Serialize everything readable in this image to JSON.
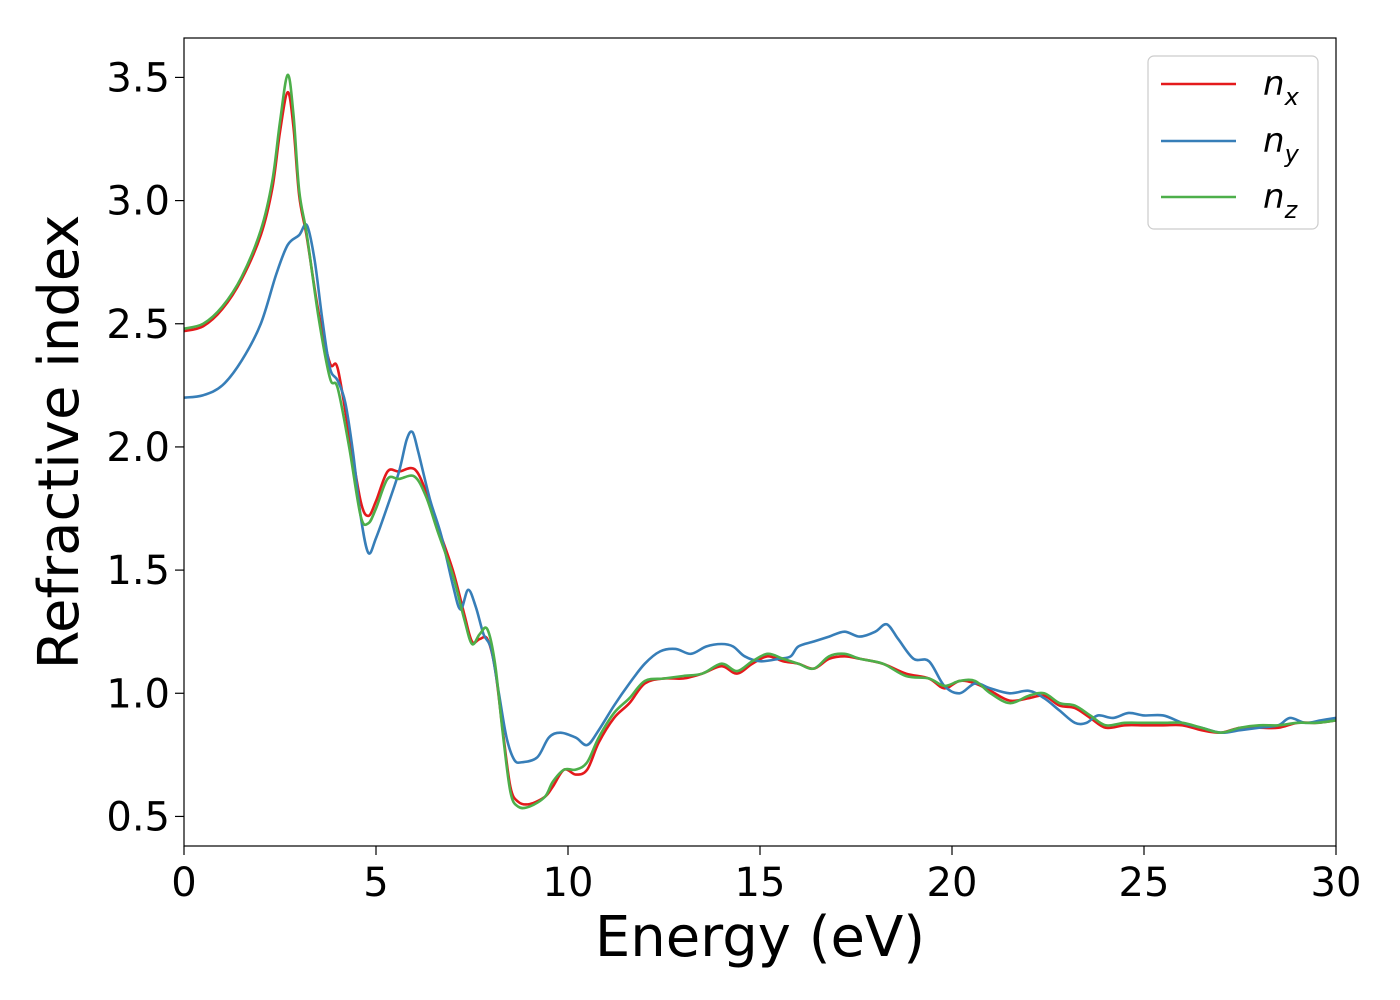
{
  "chart_data": {
    "type": "line",
    "xlabel": "Energy (eV)",
    "ylabel": "Refractive index",
    "xlim": [
      0,
      30
    ],
    "ylim": [
      0.38,
      3.66
    ],
    "xticks": [
      0,
      5,
      10,
      15,
      20,
      25,
      30
    ],
    "xtick_labels": [
      "0",
      "5",
      "10",
      "15",
      "20",
      "25",
      "30"
    ],
    "yticks": [
      0.5,
      1.0,
      1.5,
      2.0,
      2.5,
      3.0,
      3.5
    ],
    "ytick_labels": [
      "0.5",
      "1.0",
      "1.5",
      "2.0",
      "2.5",
      "3.0",
      "3.5"
    ],
    "grid": false,
    "legend_position": "top-right",
    "series": [
      {
        "name": "n_x",
        "label_main": "n",
        "label_sub": "x",
        "color": "#e41a1c",
        "points": [
          [
            0,
            2.47
          ],
          [
            0.5,
            2.49
          ],
          [
            1.0,
            2.56
          ],
          [
            1.5,
            2.68
          ],
          [
            2.0,
            2.86
          ],
          [
            2.3,
            3.05
          ],
          [
            2.5,
            3.28
          ],
          [
            2.7,
            3.44
          ],
          [
            2.85,
            3.3
          ],
          [
            3.0,
            3.02
          ],
          [
            3.2,
            2.85
          ],
          [
            3.5,
            2.55
          ],
          [
            3.8,
            2.34
          ],
          [
            4.0,
            2.32
          ],
          [
            4.3,
            2.05
          ],
          [
            4.6,
            1.78
          ],
          [
            4.8,
            1.72
          ],
          [
            5.0,
            1.78
          ],
          [
            5.3,
            1.9
          ],
          [
            5.6,
            1.9
          ],
          [
            6.0,
            1.91
          ],
          [
            6.3,
            1.82
          ],
          [
            6.6,
            1.68
          ],
          [
            7.0,
            1.5
          ],
          [
            7.3,
            1.32
          ],
          [
            7.5,
            1.21
          ],
          [
            7.7,
            1.22
          ],
          [
            7.9,
            1.22
          ],
          [
            8.1,
            1.1
          ],
          [
            8.3,
            0.85
          ],
          [
            8.5,
            0.62
          ],
          [
            8.7,
            0.56
          ],
          [
            9.0,
            0.55
          ],
          [
            9.4,
            0.58
          ],
          [
            9.6,
            0.62
          ],
          [
            9.9,
            0.69
          ],
          [
            10.2,
            0.67
          ],
          [
            10.5,
            0.69
          ],
          [
            10.8,
            0.8
          ],
          [
            11.2,
            0.9
          ],
          [
            11.6,
            0.96
          ],
          [
            12.0,
            1.04
          ],
          [
            12.5,
            1.06
          ],
          [
            13.0,
            1.06
          ],
          [
            13.5,
            1.08
          ],
          [
            14.0,
            1.11
          ],
          [
            14.4,
            1.08
          ],
          [
            14.8,
            1.12
          ],
          [
            15.2,
            1.15
          ],
          [
            15.6,
            1.13
          ],
          [
            16.0,
            1.12
          ],
          [
            16.4,
            1.1
          ],
          [
            16.8,
            1.14
          ],
          [
            17.2,
            1.15
          ],
          [
            17.6,
            1.14
          ],
          [
            18.2,
            1.12
          ],
          [
            18.8,
            1.08
          ],
          [
            19.4,
            1.06
          ],
          [
            19.8,
            1.02
          ],
          [
            20.2,
            1.05
          ],
          [
            20.6,
            1.04
          ],
          [
            21.0,
            1.01
          ],
          [
            21.5,
            0.97
          ],
          [
            22.0,
            0.98
          ],
          [
            22.4,
            0.99
          ],
          [
            22.8,
            0.95
          ],
          [
            23.2,
            0.94
          ],
          [
            23.6,
            0.9
          ],
          [
            24.0,
            0.86
          ],
          [
            24.5,
            0.87
          ],
          [
            25.0,
            0.87
          ],
          [
            25.5,
            0.87
          ],
          [
            26.0,
            0.87
          ],
          [
            26.5,
            0.85
          ],
          [
            27.0,
            0.84
          ],
          [
            27.5,
            0.86
          ],
          [
            28.0,
            0.86
          ],
          [
            28.5,
            0.86
          ],
          [
            29.0,
            0.88
          ],
          [
            29.5,
            0.88
          ],
          [
            30.0,
            0.89
          ]
        ]
      },
      {
        "name": "n_y",
        "label_main": "n",
        "label_sub": "y",
        "color": "#377eb8",
        "points": [
          [
            0,
            2.2
          ],
          [
            0.5,
            2.21
          ],
          [
            1.0,
            2.25
          ],
          [
            1.5,
            2.35
          ],
          [
            2.0,
            2.5
          ],
          [
            2.4,
            2.7
          ],
          [
            2.7,
            2.82
          ],
          [
            3.0,
            2.86
          ],
          [
            3.2,
            2.9
          ],
          [
            3.4,
            2.76
          ],
          [
            3.6,
            2.52
          ],
          [
            3.8,
            2.32
          ],
          [
            4.0,
            2.27
          ],
          [
            4.2,
            2.18
          ],
          [
            4.4,
            1.98
          ],
          [
            4.6,
            1.72
          ],
          [
            4.8,
            1.57
          ],
          [
            5.0,
            1.63
          ],
          [
            5.3,
            1.76
          ],
          [
            5.6,
            1.9
          ],
          [
            5.8,
            2.03
          ],
          [
            5.95,
            2.06
          ],
          [
            6.1,
            1.98
          ],
          [
            6.4,
            1.79
          ],
          [
            6.7,
            1.64
          ],
          [
            7.0,
            1.44
          ],
          [
            7.2,
            1.34
          ],
          [
            7.4,
            1.42
          ],
          [
            7.6,
            1.35
          ],
          [
            7.8,
            1.24
          ],
          [
            8.0,
            1.18
          ],
          [
            8.2,
            1.0
          ],
          [
            8.4,
            0.82
          ],
          [
            8.6,
            0.73
          ],
          [
            8.8,
            0.72
          ],
          [
            9.2,
            0.74
          ],
          [
            9.5,
            0.82
          ],
          [
            9.8,
            0.84
          ],
          [
            10.2,
            0.82
          ],
          [
            10.5,
            0.79
          ],
          [
            10.8,
            0.85
          ],
          [
            11.2,
            0.95
          ],
          [
            11.6,
            1.04
          ],
          [
            12.0,
            1.12
          ],
          [
            12.4,
            1.17
          ],
          [
            12.8,
            1.18
          ],
          [
            13.2,
            1.16
          ],
          [
            13.6,
            1.19
          ],
          [
            14.0,
            1.2
          ],
          [
            14.3,
            1.19
          ],
          [
            14.6,
            1.15
          ],
          [
            15.0,
            1.13
          ],
          [
            15.5,
            1.14
          ],
          [
            15.8,
            1.15
          ],
          [
            16.0,
            1.19
          ],
          [
            16.4,
            1.21
          ],
          [
            16.8,
            1.23
          ],
          [
            17.2,
            1.25
          ],
          [
            17.6,
            1.23
          ],
          [
            18.0,
            1.25
          ],
          [
            18.3,
            1.28
          ],
          [
            18.6,
            1.22
          ],
          [
            19.0,
            1.14
          ],
          [
            19.4,
            1.13
          ],
          [
            19.8,
            1.03
          ],
          [
            20.2,
            1.0
          ],
          [
            20.6,
            1.04
          ],
          [
            21.0,
            1.02
          ],
          [
            21.5,
            1.0
          ],
          [
            22.0,
            1.01
          ],
          [
            22.4,
            0.98
          ],
          [
            22.8,
            0.93
          ],
          [
            23.2,
            0.88
          ],
          [
            23.5,
            0.88
          ],
          [
            23.8,
            0.91
          ],
          [
            24.2,
            0.9
          ],
          [
            24.6,
            0.92
          ],
          [
            25.0,
            0.91
          ],
          [
            25.5,
            0.91
          ],
          [
            26.0,
            0.88
          ],
          [
            26.5,
            0.86
          ],
          [
            27.0,
            0.84
          ],
          [
            27.5,
            0.85
          ],
          [
            28.0,
            0.86
          ],
          [
            28.5,
            0.87
          ],
          [
            28.8,
            0.9
          ],
          [
            29.2,
            0.88
          ],
          [
            29.6,
            0.89
          ],
          [
            30.0,
            0.9
          ]
        ]
      },
      {
        "name": "n_z",
        "label_main": "n",
        "label_sub": "z",
        "color": "#4daf4a",
        "points": [
          [
            0,
            2.48
          ],
          [
            0.5,
            2.5
          ],
          [
            1.0,
            2.57
          ],
          [
            1.5,
            2.69
          ],
          [
            2.0,
            2.88
          ],
          [
            2.3,
            3.08
          ],
          [
            2.5,
            3.32
          ],
          [
            2.7,
            3.51
          ],
          [
            2.85,
            3.35
          ],
          [
            3.0,
            3.04
          ],
          [
            3.2,
            2.86
          ],
          [
            3.5,
            2.53
          ],
          [
            3.8,
            2.28
          ],
          [
            4.0,
            2.24
          ],
          [
            4.3,
            2.0
          ],
          [
            4.6,
            1.72
          ],
          [
            4.8,
            1.69
          ],
          [
            5.0,
            1.75
          ],
          [
            5.3,
            1.87
          ],
          [
            5.6,
            1.87
          ],
          [
            6.0,
            1.88
          ],
          [
            6.3,
            1.8
          ],
          [
            6.6,
            1.66
          ],
          [
            7.0,
            1.48
          ],
          [
            7.3,
            1.3
          ],
          [
            7.5,
            1.2
          ],
          [
            7.7,
            1.24
          ],
          [
            7.9,
            1.26
          ],
          [
            8.1,
            1.12
          ],
          [
            8.3,
            0.84
          ],
          [
            8.5,
            0.6
          ],
          [
            8.7,
            0.54
          ],
          [
            9.0,
            0.54
          ],
          [
            9.4,
            0.58
          ],
          [
            9.6,
            0.64
          ],
          [
            9.9,
            0.69
          ],
          [
            10.2,
            0.69
          ],
          [
            10.5,
            0.72
          ],
          [
            10.8,
            0.82
          ],
          [
            11.2,
            0.92
          ],
          [
            11.6,
            0.98
          ],
          [
            12.0,
            1.05
          ],
          [
            12.5,
            1.06
          ],
          [
            13.0,
            1.07
          ],
          [
            13.5,
            1.08
          ],
          [
            14.0,
            1.12
          ],
          [
            14.4,
            1.09
          ],
          [
            14.8,
            1.13
          ],
          [
            15.2,
            1.16
          ],
          [
            15.6,
            1.14
          ],
          [
            16.0,
            1.12
          ],
          [
            16.4,
            1.1
          ],
          [
            16.8,
            1.15
          ],
          [
            17.2,
            1.16
          ],
          [
            17.6,
            1.14
          ],
          [
            18.2,
            1.12
          ],
          [
            18.8,
            1.07
          ],
          [
            19.4,
            1.06
          ],
          [
            19.8,
            1.03
          ],
          [
            20.2,
            1.05
          ],
          [
            20.6,
            1.05
          ],
          [
            21.0,
            1.0
          ],
          [
            21.5,
            0.96
          ],
          [
            22.0,
            0.99
          ],
          [
            22.4,
            1.0
          ],
          [
            22.8,
            0.96
          ],
          [
            23.2,
            0.95
          ],
          [
            23.6,
            0.91
          ],
          [
            24.0,
            0.87
          ],
          [
            24.5,
            0.88
          ],
          [
            25.0,
            0.88
          ],
          [
            25.5,
            0.88
          ],
          [
            26.0,
            0.88
          ],
          [
            26.5,
            0.86
          ],
          [
            27.0,
            0.84
          ],
          [
            27.5,
            0.86
          ],
          [
            28.0,
            0.87
          ],
          [
            28.5,
            0.87
          ],
          [
            29.0,
            0.88
          ],
          [
            29.5,
            0.88
          ],
          [
            30.0,
            0.89
          ]
        ]
      }
    ]
  }
}
